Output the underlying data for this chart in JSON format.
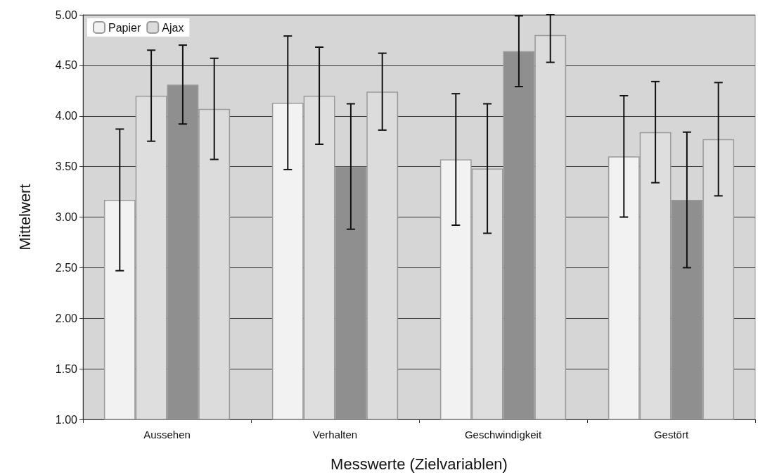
{
  "chart_data": {
    "type": "bar",
    "xlabel": "Messwerte (Zielvariablen)",
    "ylabel": "Mittelwert",
    "categories": [
      "Aussehen",
      "Verhalten",
      "Geschwindigkeit",
      "Gestört"
    ],
    "series": [
      {
        "name": "Papier",
        "color": "#f2f2f2",
        "values": [
          3.17,
          4.13,
          3.57,
          3.6
        ],
        "errors": [
          0.7,
          0.66,
          0.65,
          0.6
        ]
      },
      {
        "color": "#dedede",
        "values": [
          4.2,
          4.2,
          3.48,
          3.84
        ],
        "errors": [
          0.45,
          0.48,
          0.64,
          0.5
        ]
      },
      {
        "color": "#8f8f8f",
        "values": [
          4.31,
          3.5,
          4.64,
          3.17
        ],
        "errors": [
          0.39,
          0.62,
          0.35,
          0.67
        ]
      },
      {
        "name": "Ajax",
        "color": "#dcdcdc",
        "values": [
          4.07,
          4.24,
          4.8,
          3.77
        ],
        "errors": [
          0.5,
          0.38,
          [
            4.53,
            5.0
          ],
          0.56
        ]
      }
    ],
    "ylim": [
      1,
      5
    ],
    "yticks": [
      {
        "value": 1,
        "label": "1.00"
      },
      {
        "value": 1.5,
        "label": "1.50"
      },
      {
        "value": 2,
        "label": "2.00"
      },
      {
        "value": 2.5,
        "label": "2.50"
      },
      {
        "value": 3,
        "label": "3.00"
      },
      {
        "value": 3.5,
        "label": "3.50"
      },
      {
        "value": 4,
        "label": "4.00"
      },
      {
        "value": 4.5,
        "label": "4.50"
      },
      {
        "value": 5,
        "label": "5.00"
      }
    ],
    "grid": "y",
    "legend": "top left"
  }
}
